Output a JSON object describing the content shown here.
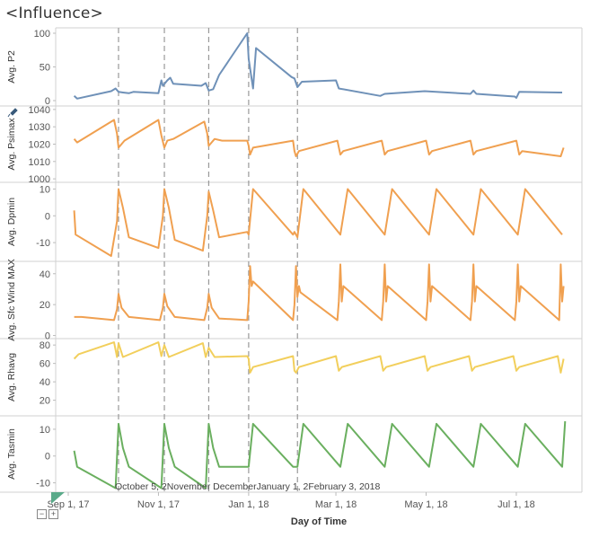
{
  "title": "<Influence>",
  "x_axis": {
    "title": "Day of Time",
    "ticks": [
      {
        "date": "2017-09-01",
        "label": "Sep 1, 17"
      },
      {
        "date": "2017-11-01",
        "label": "Nov 1, 17"
      },
      {
        "date": "2018-01-01",
        "label": "Jan 1, 18"
      },
      {
        "date": "2018-03-01",
        "label": "Mar 1, 18"
      },
      {
        "date": "2018-05-01",
        "label": "May 1, 18"
      },
      {
        "date": "2018-07-01",
        "label": "Jul 1, 18"
      }
    ]
  },
  "reference_lines": [
    {
      "date": "2017-10-05",
      "label": "October 5, 2017"
    },
    {
      "date": "2017-11-05",
      "label": "November 5, 2017"
    },
    {
      "date": "2017-12-05",
      "label": "December 5, 2017"
    },
    {
      "date": "2018-01-01",
      "label": "January 1, 2018"
    },
    {
      "date": "2018-02-03",
      "label": "February 3, 2018"
    }
  ],
  "reference_label_text": "October 5, 2November DecemberJanuary 1, 2February 3, 2018",
  "controls": {
    "collapse": "−",
    "expand": "+"
  },
  "chart_data": [
    {
      "type": "line",
      "ylabel": "Avg. P2",
      "color": "#6f91b8",
      "yticks": [
        0,
        50,
        100
      ],
      "ylim": [
        -8,
        108
      ],
      "x": [
        "2017-09-05",
        "2017-09-07",
        "2017-09-30",
        "2017-10-03",
        "2017-10-05",
        "2017-10-08",
        "2017-10-12",
        "2017-10-15",
        "2017-11-01",
        "2017-11-03",
        "2017-11-04",
        "2017-11-07",
        "2017-11-09",
        "2017-11-11",
        "2017-11-30",
        "2017-12-03",
        "2017-12-05",
        "2017-12-08",
        "2017-12-12",
        "2017-12-31",
        "2018-01-01",
        "2018-01-04",
        "2018-01-06",
        "2018-01-30",
        "2018-02-01",
        "2018-02-03",
        "2018-02-06",
        "2018-03-01",
        "2018-03-03",
        "2018-03-31",
        "2018-04-01",
        "2018-04-03",
        "2018-04-30",
        "2018-05-31",
        "2018-06-02",
        "2018-06-04",
        "2018-06-30",
        "2018-07-01",
        "2018-07-03",
        "2018-07-30",
        "2018-08-01"
      ],
      "values": [
        7,
        3,
        14,
        18,
        13,
        12,
        11,
        13,
        11,
        30,
        22,
        30,
        34,
        25,
        22,
        26,
        15,
        17,
        38,
        100,
        62,
        18,
        78,
        35,
        33,
        20,
        28,
        30,
        18,
        7,
        8,
        10,
        14,
        10,
        15,
        10,
        6,
        4,
        13,
        12,
        12
      ]
    },
    {
      "type": "line",
      "ylabel": "Avg. Psimax",
      "color": "#f0a050",
      "yticks": [
        1000,
        1010,
        1020,
        1030,
        1040
      ],
      "ylim": [
        998,
        1042
      ],
      "x": [
        "2017-09-05",
        "2017-09-07",
        "2017-10-02",
        "2017-10-04",
        "2017-10-05",
        "2017-10-09",
        "2017-11-01",
        "2017-11-03",
        "2017-11-05",
        "2017-11-07",
        "2017-11-11",
        "2017-12-02",
        "2017-12-04",
        "2017-12-05",
        "2017-12-09",
        "2017-12-14",
        "2017-12-31",
        "2018-01-01",
        "2018-01-02",
        "2018-01-04",
        "2018-01-31",
        "2018-02-01",
        "2018-02-02",
        "2018-02-04",
        "2018-03-02",
        "2018-03-04",
        "2018-03-06",
        "2018-04-01",
        "2018-04-03",
        "2018-04-05",
        "2018-05-01",
        "2018-05-03",
        "2018-05-05",
        "2018-05-31",
        "2018-06-02",
        "2018-06-04",
        "2018-07-01",
        "2018-07-03",
        "2018-07-05",
        "2018-07-31",
        "2018-08-02"
      ],
      "values": [
        1023,
        1021,
        1034,
        1026,
        1018,
        1022,
        1034,
        1025,
        1018,
        1022,
        1023,
        1033,
        1026,
        1019,
        1023,
        1022,
        1022,
        1019,
        1014,
        1018,
        1022,
        1016,
        1013,
        1016,
        1022,
        1014,
        1016,
        1022,
        1014,
        1016,
        1022,
        1014,
        1016,
        1022,
        1014,
        1016,
        1022,
        1014,
        1016,
        1013,
        1018
      ]
    },
    {
      "type": "line",
      "ylabel": "Avg. Dpmin",
      "color": "#f0a050",
      "yticks": [
        -10,
        0,
        10
      ],
      "ylim": [
        -17,
        12.5
      ],
      "x": [
        "2017-09-05",
        "2017-09-06",
        "2017-09-30",
        "2017-10-04",
        "2017-10-05",
        "2017-10-08",
        "2017-10-12",
        "2017-11-01",
        "2017-11-04",
        "2017-11-05",
        "2017-11-08",
        "2017-11-12",
        "2017-12-01",
        "2017-12-04",
        "2017-12-05",
        "2017-12-08",
        "2017-12-12",
        "2017-12-31",
        "2018-01-01",
        "2018-01-04",
        "2018-01-31",
        "2018-02-01",
        "2018-02-03",
        "2018-02-07",
        "2018-03-04",
        "2018-03-09",
        "2018-04-03",
        "2018-04-08",
        "2018-05-03",
        "2018-05-08",
        "2018-06-02",
        "2018-06-07",
        "2018-07-02",
        "2018-07-07",
        "2018-08-01"
      ],
      "values": [
        2,
        -7,
        -15,
        -2,
        10,
        3,
        -8,
        -12,
        0,
        10,
        3,
        -9,
        -13,
        0,
        9,
        2,
        -8,
        -6,
        -7,
        10,
        -7,
        -6,
        -8,
        10,
        -7,
        10,
        -7,
        10,
        -7,
        10,
        -7,
        10,
        -7,
        10,
        -7
      ]
    },
    {
      "type": "line",
      "ylabel": "Avg. Sfc Wind MAX",
      "color": "#f0a050",
      "yticks": [
        0,
        20,
        40
      ],
      "ylim": [
        -2,
        48
      ],
      "x": [
        "2017-09-05",
        "2017-09-10",
        "2017-10-02",
        "2017-10-04",
        "2017-10-05",
        "2017-10-07",
        "2017-10-12",
        "2017-11-02",
        "2017-11-04",
        "2017-11-05",
        "2017-11-07",
        "2017-11-12",
        "2017-12-02",
        "2017-12-04",
        "2017-12-05",
        "2017-12-07",
        "2017-12-12",
        "2017-12-31",
        "2018-01-01",
        "2018-01-02",
        "2018-01-03",
        "2018-01-04",
        "2018-01-31",
        "2018-02-01",
        "2018-02-02",
        "2018-02-03",
        "2018-02-04",
        "2018-02-05",
        "2018-03-02",
        "2018-03-03",
        "2018-03-04",
        "2018-03-05",
        "2018-03-06",
        "2018-04-01",
        "2018-04-02",
        "2018-04-03",
        "2018-04-04",
        "2018-04-05",
        "2018-05-01",
        "2018-05-02",
        "2018-05-03",
        "2018-05-04",
        "2018-05-05",
        "2018-05-31",
        "2018-06-01",
        "2018-06-02",
        "2018-06-03",
        "2018-06-04",
        "2018-06-30",
        "2018-07-01",
        "2018-07-02",
        "2018-07-03",
        "2018-07-04",
        "2018-07-30",
        "2018-07-31",
        "2018-08-01",
        "2018-08-02"
      ],
      "values": [
        12,
        12,
        10,
        17,
        27,
        18,
        12,
        10,
        18,
        27,
        19,
        12,
        10,
        18,
        27,
        18,
        11,
        10,
        22,
        45,
        32,
        35,
        10,
        20,
        45,
        25,
        32,
        28,
        10,
        22,
        46,
        22,
        32,
        10,
        22,
        46,
        22,
        32,
        10,
        22,
        46,
        22,
        32,
        10,
        22,
        46,
        22,
        32,
        10,
        22,
        46,
        22,
        32,
        10,
        46,
        22,
        32
      ]
    },
    {
      "type": "line",
      "ylabel": "Avg. Rhavg",
      "color": "#f2cf5c",
      "yticks": [
        20,
        40,
        60,
        80
      ],
      "ylim": [
        3,
        87
      ],
      "x": [
        "2017-09-05",
        "2017-09-08",
        "2017-10-02",
        "2017-10-04",
        "2017-10-05",
        "2017-10-08",
        "2017-11-01",
        "2017-11-03",
        "2017-11-05",
        "2017-11-08",
        "2017-12-01",
        "2017-12-03",
        "2017-12-05",
        "2017-12-09",
        "2017-12-31",
        "2018-01-01",
        "2018-01-02",
        "2018-01-04",
        "2018-01-31",
        "2018-02-01",
        "2018-02-02",
        "2018-02-04",
        "2018-03-01",
        "2018-03-03",
        "2018-03-05",
        "2018-03-31",
        "2018-04-02",
        "2018-04-04",
        "2018-04-30",
        "2018-05-02",
        "2018-05-04",
        "2018-05-30",
        "2018-06-01",
        "2018-06-03",
        "2018-06-29",
        "2018-07-01",
        "2018-07-03",
        "2018-07-29",
        "2018-07-31",
        "2018-08-02"
      ],
      "values": [
        65,
        70,
        83,
        67,
        82,
        67,
        83,
        68,
        80,
        67,
        82,
        67,
        77,
        67,
        68,
        65,
        50,
        56,
        68,
        52,
        50,
        56,
        68,
        52,
        56,
        68,
        52,
        56,
        68,
        52,
        56,
        68,
        52,
        56,
        68,
        52,
        56,
        68,
        50,
        65
      ]
    },
    {
      "type": "line",
      "ylabel": "Avg. Tasmin",
      "color": "#6aaf5f",
      "yticks": [
        -10,
        0,
        10
      ],
      "ylim": [
        -13.5,
        15
      ],
      "x": [
        "2017-09-05",
        "2017-09-07",
        "2017-10-03",
        "2017-10-05",
        "2017-10-08",
        "2017-10-12",
        "2017-11-03",
        "2017-11-05",
        "2017-11-08",
        "2017-11-12",
        "2017-12-03",
        "2017-12-05",
        "2017-12-08",
        "2017-12-12",
        "2017-12-31",
        "2018-01-01",
        "2018-01-04",
        "2018-01-31",
        "2018-02-01",
        "2018-02-03",
        "2018-02-07",
        "2018-03-04",
        "2018-03-09",
        "2018-04-03",
        "2018-04-08",
        "2018-05-03",
        "2018-05-08",
        "2018-06-02",
        "2018-06-07",
        "2018-07-02",
        "2018-07-07",
        "2018-08-01",
        "2018-08-03"
      ],
      "values": [
        2,
        -4,
        -12,
        12,
        3,
        -4,
        -12,
        12,
        3,
        -4,
        -12,
        12,
        3,
        -4,
        -4,
        -4,
        12,
        -4,
        -4,
        -4,
        12,
        -4,
        12,
        -4,
        12,
        -4,
        12,
        -4,
        12,
        -4,
        12,
        -4,
        13
      ]
    }
  ]
}
